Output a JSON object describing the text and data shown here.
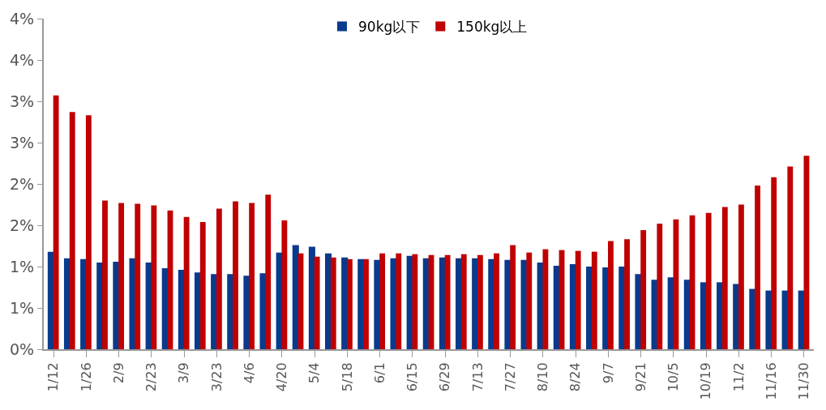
{
  "chart_data": {
    "type": "bar",
    "categories": [
      "1/12",
      null,
      "1/26",
      null,
      "2/9",
      null,
      "2/23",
      null,
      "3/9",
      null,
      "3/23",
      null,
      "4/6",
      null,
      "4/20",
      null,
      "5/4",
      null,
      "5/18",
      null,
      "6/1",
      null,
      "6/15",
      null,
      "6/29",
      null,
      "7/13",
      null,
      "7/27",
      null,
      "8/10",
      null,
      "8/24",
      null,
      "9/7",
      null,
      "9/21",
      null,
      "10/5",
      null,
      "10/19",
      null,
      "11/2",
      null,
      "11/16",
      null,
      "11/30"
    ],
    "series": [
      {
        "name": "90kg以下",
        "color": "#0a3a8c",
        "values": [
          1.18,
          1.1,
          1.09,
          1.05,
          1.06,
          1.1,
          1.05,
          0.98,
          0.96,
          0.93,
          0.91,
          0.91,
          0.89,
          0.92,
          1.17,
          1.26,
          1.24,
          1.16,
          1.11,
          1.09,
          1.08,
          1.1,
          1.13,
          1.1,
          1.11,
          1.1,
          1.1,
          1.09,
          1.08,
          1.08,
          1.05,
          1.01,
          1.03,
          1.0,
          0.99,
          1.0,
          0.91,
          0.84,
          0.87,
          0.84,
          0.81,
          0.81,
          0.79,
          0.73,
          0.71,
          0.71,
          0.71
        ]
      },
      {
        "name": "150kg以上",
        "color": "#c00000",
        "values": [
          3.07,
          2.87,
          2.83,
          1.8,
          1.77,
          1.76,
          1.74,
          1.68,
          1.6,
          1.54,
          1.7,
          1.79,
          1.77,
          1.87,
          1.56,
          1.16,
          1.12,
          1.11,
          1.09,
          1.09,
          1.16,
          1.16,
          1.15,
          1.14,
          1.14,
          1.15,
          1.14,
          1.16,
          1.26,
          1.17,
          1.21,
          1.2,
          1.19,
          1.18,
          1.31,
          1.33,
          1.44,
          1.52,
          1.57,
          1.62,
          1.65,
          1.72,
          1.75,
          1.98,
          2.08,
          2.21,
          2.34
        ]
      }
    ],
    "ylim": [
      0,
      4
    ],
    "yticks": [
      {
        "value": 0,
        "label": "0%"
      },
      {
        "value": 0.5,
        "label": "1%"
      },
      {
        "value": 1,
        "label": "1%"
      },
      {
        "value": 1.5,
        "label": "2%"
      },
      {
        "value": 2,
        "label": "2%"
      },
      {
        "value": 2.5,
        "label": "3%"
      },
      {
        "value": 3,
        "label": "3%"
      },
      {
        "value": 3.5,
        "label": "4%"
      },
      {
        "value": 4,
        "label": "4%"
      }
    ],
    "legend": "top"
  }
}
